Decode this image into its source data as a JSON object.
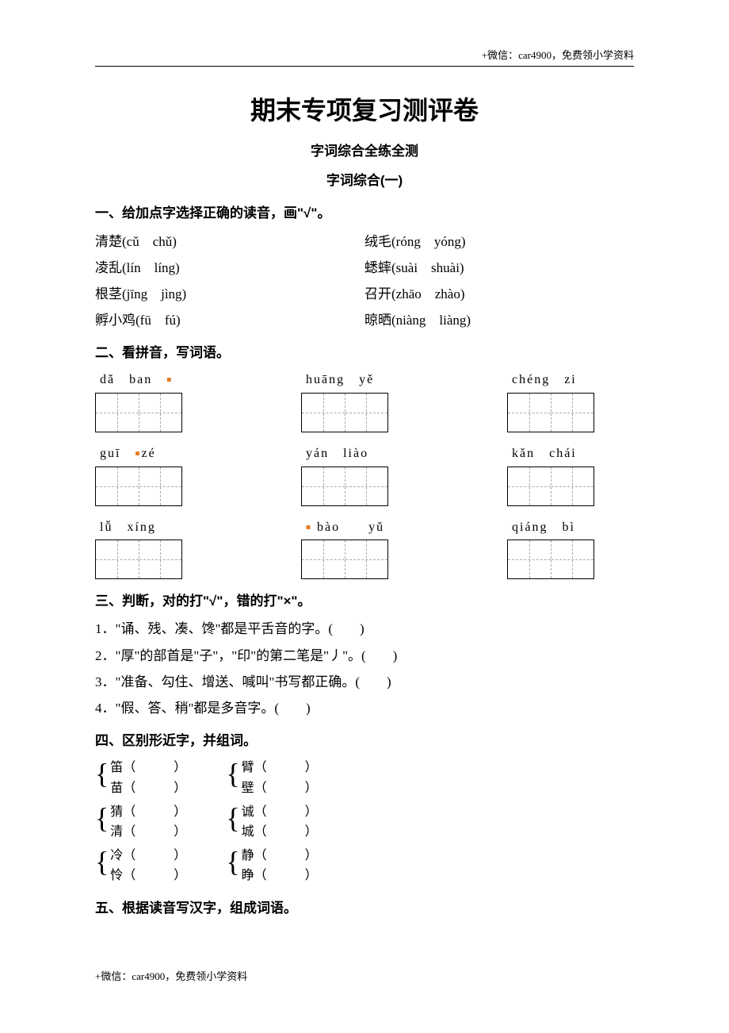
{
  "header_note": "+微信：car4900，免费领小学资料",
  "footer_note": "+微信：car4900，免费领小学资料",
  "main_title": "期末专项复习测评卷",
  "sub_title1": "字词综合全练全测",
  "sub_title2": "字词综合(一)",
  "sections": {
    "s1": {
      "heading": "一、给加点字选择正确的读音，画\"√\"。",
      "rows": [
        {
          "left": "清楚(cǔ　chǔ)",
          "right": "绒毛(róng　yóng)"
        },
        {
          "left": "凌乱(lín　líng)",
          "right": "蟋蟀(suài　shuài)"
        },
        {
          "left": "根茎(jīng　jìng)",
          "right": "召开(zhāo　zhào)"
        },
        {
          "left": "孵小鸡(fū　fú)",
          "right": "晾晒(niàng　liàng)"
        }
      ]
    },
    "s2": {
      "heading": "二、看拼音，写词语。",
      "row1": [
        {
          "pinyin": "dǎ　ban",
          "dot": true
        },
        {
          "pinyin": "huāng　yě",
          "dot": false
        },
        {
          "pinyin": "chéng　zi",
          "dot": false
        }
      ],
      "row2": [
        {
          "pinyin": "guī　zé",
          "dot": true,
          "dotpos": "mid"
        },
        {
          "pinyin": "yán　liào",
          "dot": false
        },
        {
          "pinyin": "kǎn　chái",
          "dot": false
        }
      ],
      "row3": [
        {
          "pinyin": "lǚ　xíng",
          "dot": false
        },
        {
          "pinyin": "bào　　yǔ",
          "dot": true,
          "dotpos": "before"
        },
        {
          "pinyin": "qiáng　bì",
          "dot": false
        }
      ]
    },
    "s3": {
      "heading": "三、判断，对的打\"√\"，错的打\"×\"。",
      "items": [
        "1．\"诵、残、凑、馋\"都是平舌音的字。(　　)",
        "2．\"厚\"的部首是\"子\"，\"印\"的第二笔是\"丿\"。(　　)",
        "3．\"准备、勾住、增送、喊叫\"书写都正确。(　　)",
        "4．\"假、答、稍\"都是多音字。(　　)"
      ]
    },
    "s4": {
      "heading": "四、区别形近字，并组词。",
      "groups": [
        [
          {
            "a": "笛",
            "b": "苗"
          },
          {
            "a": "臂",
            "b": "壁"
          }
        ],
        [
          {
            "a": "猜",
            "b": "清"
          },
          {
            "a": "诚",
            "b": "城"
          }
        ],
        [
          {
            "a": "冷",
            "b": "怜"
          },
          {
            "a": "静",
            "b": "睁"
          }
        ]
      ]
    },
    "s5": {
      "heading": "五、根据读音写汉字，组成词语。"
    }
  }
}
